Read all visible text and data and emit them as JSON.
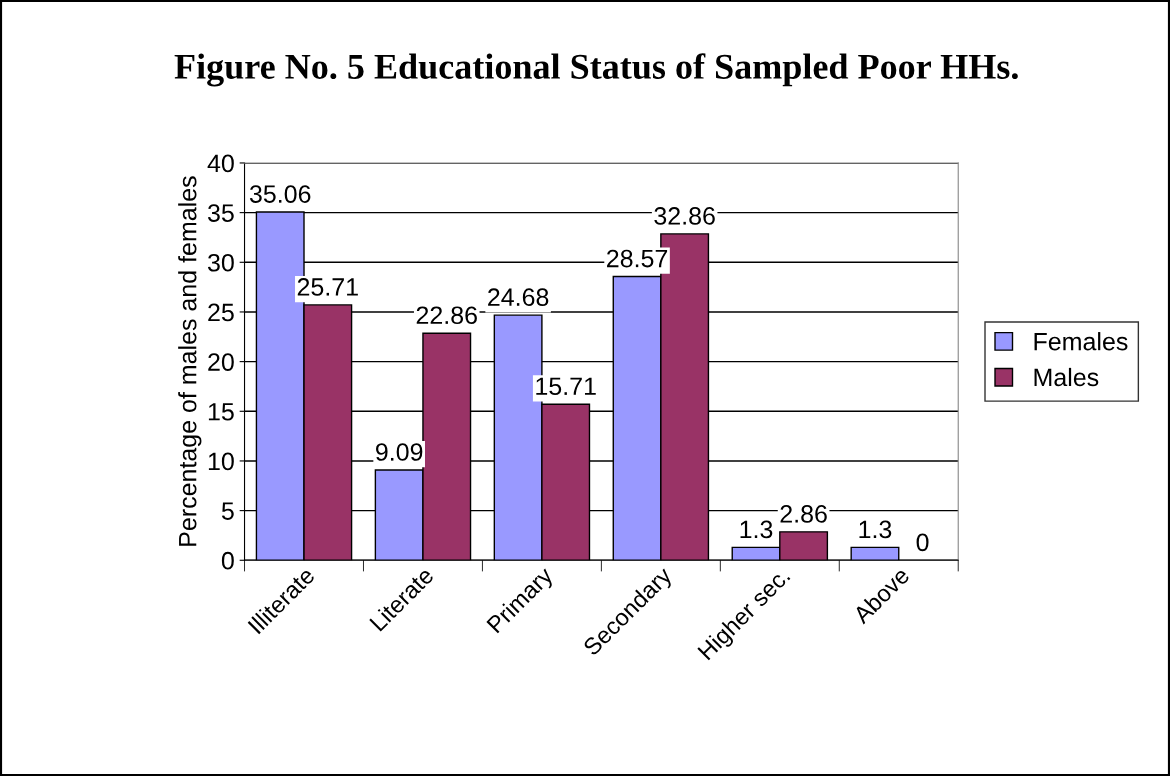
{
  "chart_data": {
    "type": "bar",
    "title": "Figure No. 5 Educational Status of Sampled Poor HHs.",
    "ylabel": "Percentage of males and females",
    "categories": [
      "Illiterate",
      "Literate",
      "Primary",
      "Secondary",
      "Higher sec.",
      "Above"
    ],
    "series": [
      {
        "name": "Females",
        "color": "#9999ff",
        "values": [
          35.06,
          9.09,
          24.68,
          28.57,
          1.3,
          1.3
        ]
      },
      {
        "name": "Males",
        "color": "#993366",
        "values": [
          25.71,
          22.86,
          15.71,
          32.86,
          2.86,
          0
        ]
      }
    ],
    "ylim": [
      0,
      40
    ],
    "yticks": [
      0,
      5,
      10,
      15,
      20,
      25,
      30,
      35,
      40
    ],
    "grid": "y",
    "legend": "right",
    "data_labels": true
  }
}
